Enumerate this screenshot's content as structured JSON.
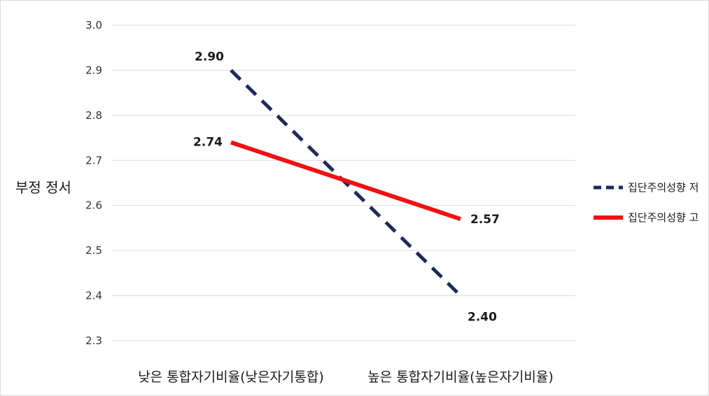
{
  "chart_data": {
    "type": "line",
    "ylabel": "부정 정서",
    "ylim": [
      2.3,
      3.0
    ],
    "yticks": [
      "3.0",
      "2.9",
      "2.8",
      "2.7",
      "2.6",
      "2.5",
      "2.4",
      "2.3"
    ],
    "categories": [
      "낮은 통합자기비율(낮은자기통합)",
      "높은 통합자기비율(높은자기비율)"
    ],
    "grid": true,
    "legend_position": "right",
    "series": [
      {
        "name": "집단주의성향 저",
        "values": [
          2.9,
          2.4
        ],
        "labels": [
          "2.90",
          "2.40"
        ],
        "color": "#1f2a5c",
        "style": "dashed"
      },
      {
        "name": "집단주의성향 고",
        "values": [
          2.74,
          2.57
        ],
        "labels": [
          "2.74",
          "2.57"
        ],
        "color": "#ee1111",
        "style": "solid"
      }
    ]
  }
}
